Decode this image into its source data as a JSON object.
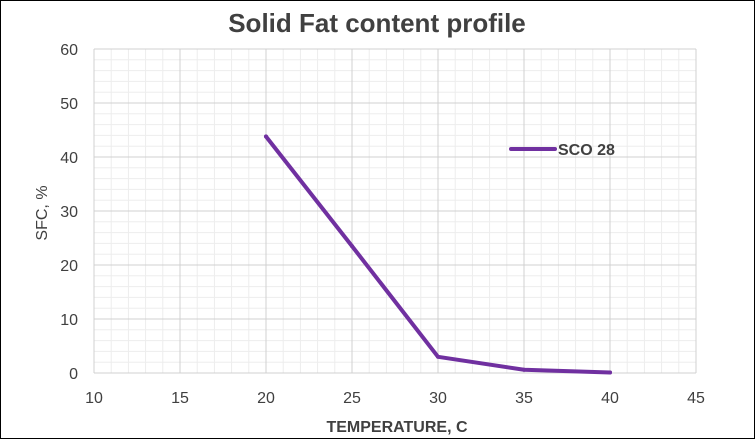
{
  "chart_data": {
    "type": "line",
    "title": "Solid Fat content profile",
    "xlabel": "TEMPERATURE, C",
    "ylabel": "SFC, %",
    "xlim": [
      10,
      45
    ],
    "ylim": [
      0,
      60
    ],
    "x_ticks": [
      10,
      15,
      20,
      25,
      30,
      35,
      40,
      45
    ],
    "y_ticks": [
      0,
      10,
      20,
      30,
      40,
      50,
      60
    ],
    "minor_x_step": 1,
    "minor_y_step": 2,
    "grid": true,
    "legend_position": "right",
    "series": [
      {
        "name": "SCO 28",
        "color": "#7030A0",
        "x": [
          20,
          25,
          30,
          35,
          40
        ],
        "y": [
          43.8,
          23.5,
          3,
          0.6,
          0.1
        ]
      }
    ]
  }
}
